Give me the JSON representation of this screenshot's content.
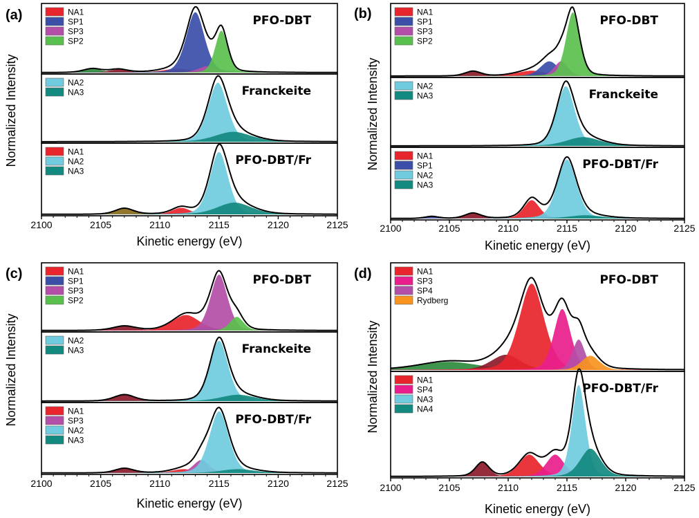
{
  "chart_data": [
    {
      "type": "area",
      "panel_label": "(a)",
      "xlabel": "Kinetic energy (eV)",
      "ylabel": "Normalized Intensity",
      "xlim": [
        2100,
        2125
      ],
      "xticks": [
        2100,
        2105,
        2110,
        2115,
        2120,
        2125
      ],
      "subplots": [
        {
          "title": "PFO-DBT",
          "components": [
            {
              "name": "NA1",
              "color": "#e8242c",
              "center": 2111.5,
              "width": 1.3,
              "height": 0.06
            },
            {
              "name": "SP1",
              "color": "#3b4ea8",
              "center": 2113.0,
              "width": 0.8,
              "height": 0.95
            },
            {
              "name": "SP3",
              "color": "#b44ea7",
              "center": 2114.0,
              "width": 0.8,
              "height": 0.1
            },
            {
              "name": "SP2",
              "color": "#5ac04d",
              "center": 2115.2,
              "width": 0.55,
              "height": 0.66
            }
          ],
          "legend_components": [
            "NA1",
            "SP1",
            "SP3",
            "SP2"
          ],
          "minor_peaks": [
            {
              "color": "#2e8b3e",
              "center": 2104.3,
              "width": 0.8,
              "height": 0.06
            },
            {
              "color": "#8b1a2a",
              "center": 2106.5,
              "width": 0.8,
              "height": 0.05
            }
          ]
        },
        {
          "title": "Franckeite",
          "components": [
            {
              "name": "NA2",
              "color": "#6fcbdd",
              "center": 2114.9,
              "width": 0.85,
              "height": 0.95
            },
            {
              "name": "NA3",
              "color": "#128a7f",
              "center": 2116.2,
              "width": 1.6,
              "height": 0.16
            }
          ],
          "legend_components": [
            "NA2",
            "NA3"
          ],
          "minor_peaks": []
        },
        {
          "title": "PFO-DBT/Fr",
          "components": [
            {
              "name": "NA1",
              "color": "#e8242c",
              "center": 2111.8,
              "width": 0.8,
              "height": 0.1
            },
            {
              "name": "NA2",
              "color": "#6fcbdd",
              "center": 2115.0,
              "width": 0.8,
              "height": 0.95
            },
            {
              "name": "NA3",
              "color": "#128a7f",
              "center": 2116.3,
              "width": 1.5,
              "height": 0.18
            }
          ],
          "legend_components": [
            "NA1",
            "NA2",
            "NA3"
          ],
          "minor_peaks": [
            {
              "color": "#8b6a1a",
              "center": 2107.0,
              "width": 0.8,
              "height": 0.09
            }
          ]
        }
      ]
    },
    {
      "type": "area",
      "panel_label": "(b)",
      "xlabel": "Kinetic energy (eV)",
      "ylabel": "Normalized Intensity",
      "xlim": [
        2100,
        2125
      ],
      "xticks": [
        2100,
        2105,
        2110,
        2115,
        2120,
        2125
      ],
      "subplots": [
        {
          "title": "PFO-DBT",
          "components": [
            {
              "name": "NA1",
              "color": "#e8242c",
              "center": 2112.0,
              "width": 1.3,
              "height": 0.08
            },
            {
              "name": "SP1",
              "color": "#3b4ea8",
              "center": 2113.5,
              "width": 0.8,
              "height": 0.22
            },
            {
              "name": "SP3",
              "color": "#b44ea7",
              "center": 2114.5,
              "width": 0.6,
              "height": 0.22
            },
            {
              "name": "SP2",
              "color": "#5ac04d",
              "center": 2115.5,
              "width": 0.6,
              "height": 0.95
            }
          ],
          "legend_components": [
            "NA1",
            "SP1",
            "SP3",
            "SP2"
          ],
          "minor_peaks": [
            {
              "color": "#8b1a2a",
              "center": 2107.0,
              "width": 0.7,
              "height": 0.07
            }
          ]
        },
        {
          "title": "Franckeite",
          "components": [
            {
              "name": "NA2",
              "color": "#6fcbdd",
              "center": 2114.9,
              "width": 0.8,
              "height": 0.95
            },
            {
              "name": "NA3",
              "color": "#128a7f",
              "center": 2116.4,
              "width": 1.5,
              "height": 0.14
            }
          ],
          "legend_components": [
            "NA2",
            "NA3"
          ],
          "minor_peaks": []
        },
        {
          "title": "PFO-DBT/Fr",
          "components": [
            {
              "name": "NA1",
              "color": "#e8242c",
              "center": 2112.0,
              "width": 0.7,
              "height": 0.28
            },
            {
              "name": "SP1",
              "color": "#3b4ea8",
              "center": 2113.0,
              "width": 1.2,
              "height": 0.03
            },
            {
              "name": "NA2",
              "color": "#6fcbdd",
              "center": 2115.0,
              "width": 0.85,
              "height": 0.9
            },
            {
              "name": "NA3",
              "color": "#128a7f",
              "center": 2116.6,
              "width": 1.5,
              "height": 0.05
            }
          ],
          "legend_components": [
            "NA1",
            "SP1",
            "NA2",
            "NA3"
          ],
          "minor_peaks": [
            {
              "color": "#3b4ea8",
              "center": 2103.5,
              "width": 0.6,
              "height": 0.03
            },
            {
              "color": "#8b1a2a",
              "center": 2107.0,
              "width": 0.7,
              "height": 0.08
            }
          ]
        }
      ]
    },
    {
      "type": "area",
      "panel_label": "(c)",
      "xlabel": "Kinetic energy (eV)",
      "ylabel": "Normalized Intensity",
      "xlim": [
        2100,
        2125
      ],
      "xticks": [
        2100,
        2105,
        2110,
        2115,
        2120,
        2125
      ],
      "subplots": [
        {
          "title": "PFO-DBT",
          "components": [
            {
              "name": "NA1",
              "color": "#e8242c",
              "center": 2112.2,
              "width": 1.2,
              "height": 0.25
            },
            {
              "name": "SP1",
              "color": "#3b4ea8",
              "center": 2113.8,
              "width": 1.0,
              "height": 0.05
            },
            {
              "name": "SP3",
              "color": "#b44ea7",
              "center": 2115.0,
              "width": 0.75,
              "height": 0.9
            },
            {
              "name": "SP2",
              "color": "#5ac04d",
              "center": 2116.5,
              "width": 0.6,
              "height": 0.22
            }
          ],
          "legend_components": [
            "NA1",
            "SP1",
            "SP3",
            "SP2"
          ],
          "minor_peaks": [
            {
              "color": "#8b1a2a",
              "center": 2107.0,
              "width": 1.0,
              "height": 0.07
            }
          ]
        },
        {
          "title": "Franckeite",
          "components": [
            {
              "name": "NA2",
              "color": "#6fcbdd",
              "center": 2115.0,
              "width": 0.8,
              "height": 0.95
            },
            {
              "name": "NA3",
              "color": "#128a7f",
              "center": 2116.6,
              "width": 1.5,
              "height": 0.1
            }
          ],
          "legend_components": [
            "NA2",
            "NA3"
          ],
          "minor_peaks": [
            {
              "color": "#8b1a2a",
              "center": 2107.0,
              "width": 0.9,
              "height": 0.1
            }
          ]
        },
        {
          "title": "PFO-DBT/Fr",
          "components": [
            {
              "name": "NA1",
              "color": "#e8242c",
              "center": 2112.0,
              "width": 1.0,
              "height": 0.06
            },
            {
              "name": "SP3",
              "color": "#b44ea7",
              "center": 2113.5,
              "width": 0.7,
              "height": 0.2
            },
            {
              "name": "NA2",
              "color": "#6fcbdd",
              "center": 2115.0,
              "width": 0.85,
              "height": 0.95
            },
            {
              "name": "NA3",
              "color": "#128a7f",
              "center": 2116.6,
              "width": 1.5,
              "height": 0.06
            }
          ],
          "legend_components": [
            "NA1",
            "SP3",
            "NA2",
            "NA3"
          ],
          "minor_peaks": [
            {
              "color": "#8b1a2a",
              "center": 2107.0,
              "width": 0.8,
              "height": 0.07
            }
          ]
        }
      ]
    },
    {
      "type": "area",
      "panel_label": "(d)",
      "xlabel": "Kinetic energy (eV)",
      "ylabel": "Normalized Intensity",
      "xlim": [
        2100,
        2125
      ],
      "xticks": [
        2100,
        2105,
        2110,
        2115,
        2120,
        2125
      ],
      "subplots": [
        {
          "title": "PFO-DBT",
          "components": [
            {
              "name": "NA1",
              "color": "#e8242c",
              "center": 2112.0,
              "width": 1.1,
              "height": 0.85
            },
            {
              "name": "SP3",
              "color": "#e91e8c",
              "center": 2114.6,
              "width": 0.75,
              "height": 0.6
            },
            {
              "name": "SP4",
              "color": "#b44ea7",
              "center": 2116.0,
              "width": 0.55,
              "height": 0.3
            },
            {
              "name": "Rydberg",
              "color": "#f7931e",
              "center": 2117.0,
              "width": 0.8,
              "height": 0.14
            }
          ],
          "legend_components": [
            "NA1",
            "SP3",
            "SP4",
            "Rydberg"
          ],
          "minor_peaks": [
            {
              "color": "#2e8b3e",
              "center": 2105.0,
              "width": 2.6,
              "height": 0.08
            },
            {
              "color": "#8b1a2a",
              "center": 2109.8,
              "width": 1.3,
              "height": 0.15
            }
          ]
        },
        {
          "title": "PFO-DBT/Fr",
          "components": [
            {
              "name": "NA1",
              "color": "#e8242c",
              "center": 2111.8,
              "width": 0.9,
              "height": 0.22
            },
            {
              "name": "SP4",
              "color": "#e91e8c",
              "center": 2114.0,
              "width": 0.8,
              "height": 0.22
            },
            {
              "name": "NA3",
              "color": "#6fcbdd",
              "center": 2116.0,
              "width": 0.6,
              "height": 0.92
            },
            {
              "name": "NA4",
              "color": "#128a7f",
              "center": 2117.0,
              "width": 0.9,
              "height": 0.28
            }
          ],
          "legend_components": [
            "NA1",
            "SP4",
            "NA3",
            "NA4"
          ],
          "minor_peaks": [
            {
              "color": "#8b1a2a",
              "center": 2107.8,
              "width": 0.6,
              "height": 0.14
            }
          ]
        }
      ]
    }
  ]
}
